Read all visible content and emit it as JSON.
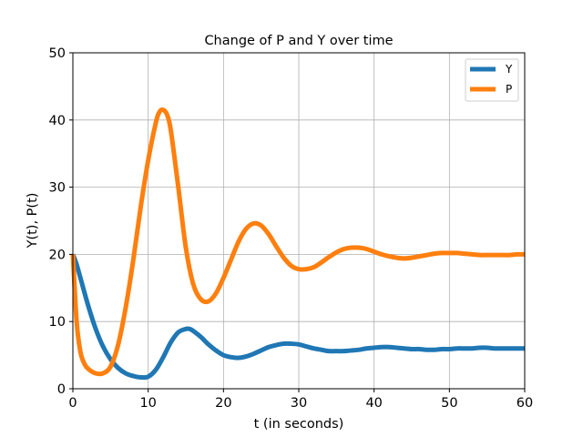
{
  "chart_data": {
    "type": "line",
    "title": "Change of P and Y over time",
    "xlabel": "t (in seconds)",
    "ylabel": "Y(t), P(t)",
    "xlim": [
      0,
      60
    ],
    "ylim": [
      0,
      50
    ],
    "xticks": [
      0,
      10,
      20,
      30,
      40,
      50,
      60
    ],
    "yticks": [
      0,
      10,
      20,
      30,
      40,
      50
    ],
    "grid": true,
    "legend_position": "top-right",
    "series": [
      {
        "name": "Y",
        "color": "#1f77b4",
        "x": [
          0,
          0.5,
          1,
          2,
          3,
          4,
          5,
          6,
          7,
          8,
          9,
          10,
          11,
          12,
          13,
          14,
          15,
          15.5,
          16,
          17,
          18,
          19,
          20,
          21,
          22,
          23,
          24,
          25,
          26,
          27,
          28,
          29,
          30,
          31,
          32,
          33,
          34,
          35,
          36,
          37,
          38,
          39,
          40,
          41,
          42,
          43,
          44,
          45,
          46,
          47,
          48,
          49,
          50,
          51,
          52,
          53,
          54,
          55,
          56,
          57,
          58,
          59,
          60
        ],
        "y": [
          20,
          18.5,
          16.5,
          12.5,
          9,
          6.3,
          4.4,
          3.1,
          2.3,
          1.9,
          1.7,
          1.8,
          2.8,
          4.7,
          6.9,
          8.4,
          8.9,
          8.9,
          8.6,
          7.7,
          6.6,
          5.7,
          5.0,
          4.7,
          4.6,
          4.8,
          5.2,
          5.7,
          6.2,
          6.5,
          6.7,
          6.7,
          6.6,
          6.3,
          6.0,
          5.8,
          5.6,
          5.6,
          5.6,
          5.7,
          5.8,
          6.0,
          6.1,
          6.2,
          6.2,
          6.1,
          6.0,
          5.9,
          5.9,
          5.8,
          5.8,
          5.9,
          5.9,
          6.0,
          6.0,
          6.0,
          6.1,
          6.1,
          6.0,
          6.0,
          6.0,
          6.0,
          6.0
        ]
      },
      {
        "name": "P",
        "color": "#ff7f0e",
        "x": [
          0,
          0.5,
          1,
          1.5,
          2,
          3,
          4,
          5,
          6,
          7,
          8,
          9,
          10,
          11,
          11.5,
          12,
          12.5,
          13,
          14,
          15,
          16,
          17,
          18,
          19,
          20,
          21,
          22,
          23,
          24,
          25,
          26,
          27,
          28,
          29,
          30,
          31,
          32,
          33,
          34,
          35,
          36,
          37,
          38,
          39,
          40,
          41,
          42,
          43,
          44,
          45,
          46,
          47,
          48,
          49,
          50,
          51,
          52,
          53,
          54,
          55,
          56,
          57,
          58,
          59,
          60
        ],
        "y": [
          20,
          10,
          5.5,
          3.8,
          3.0,
          2.3,
          2.3,
          3.3,
          6.5,
          12,
          19,
          27,
          34,
          39.5,
          41.2,
          41.5,
          40.8,
          38.5,
          30,
          21,
          15.5,
          13.3,
          13.0,
          14.2,
          16.5,
          19.2,
          21.9,
          23.8,
          24.6,
          24.3,
          23.0,
          21.2,
          19.5,
          18.3,
          17.8,
          17.8,
          18.1,
          18.8,
          19.6,
          20.3,
          20.8,
          21.0,
          21.0,
          20.8,
          20.4,
          20.0,
          19.7,
          19.5,
          19.4,
          19.5,
          19.7,
          19.9,
          20.1,
          20.2,
          20.2,
          20.2,
          20.1,
          20.0,
          19.9,
          19.9,
          19.9,
          19.9,
          19.9,
          20.0,
          20.0
        ]
      }
    ]
  }
}
